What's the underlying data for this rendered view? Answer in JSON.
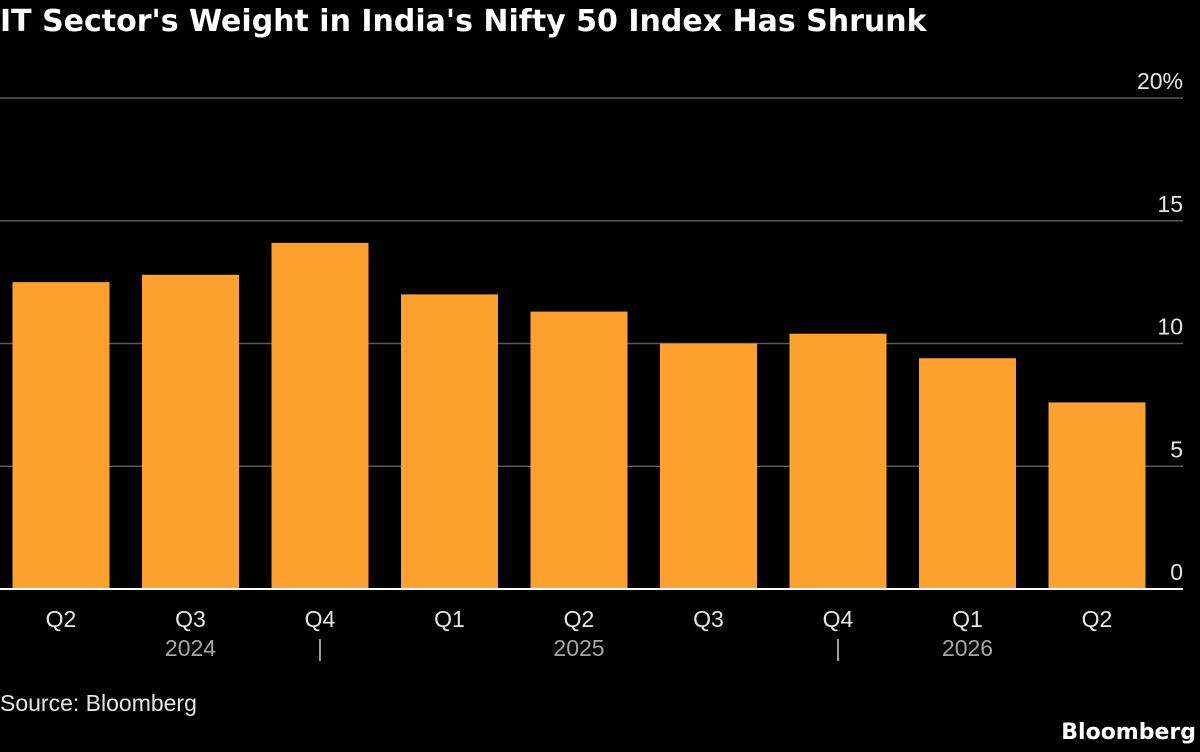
{
  "chart_data": {
    "type": "bar",
    "title": "IT Sector's Weight in India's Nifty 50 Index Has Shrunk",
    "categories": [
      "Q2",
      "Q3",
      "Q4",
      "Q1",
      "Q2",
      "Q3",
      "Q4",
      "Q1",
      "Q2"
    ],
    "years": [
      {
        "label": "2024",
        "center_index": 1
      },
      {
        "label": "2025",
        "center_index": 4
      },
      {
        "label": "2026",
        "center_index": 7
      }
    ],
    "year_separators_after_index": [
      2,
      6
    ],
    "year_separator_label": "|",
    "values": [
      12.5,
      12.8,
      14.1,
      12.0,
      11.3,
      10.0,
      10.4,
      9.4,
      7.6
    ],
    "y_ticks": [
      0,
      5,
      10,
      15,
      20
    ],
    "y_tick_labels": [
      "0",
      "5",
      "10",
      "15",
      "20%"
    ],
    "ylim": [
      0,
      20
    ],
    "grid": true,
    "colors": {
      "bar": "#FFA12F",
      "background": "#000000",
      "gridline": "#5a5a5a",
      "axis": "#ffffff"
    }
  },
  "source": "Source: Bloomberg",
  "brand": "Bloomberg"
}
